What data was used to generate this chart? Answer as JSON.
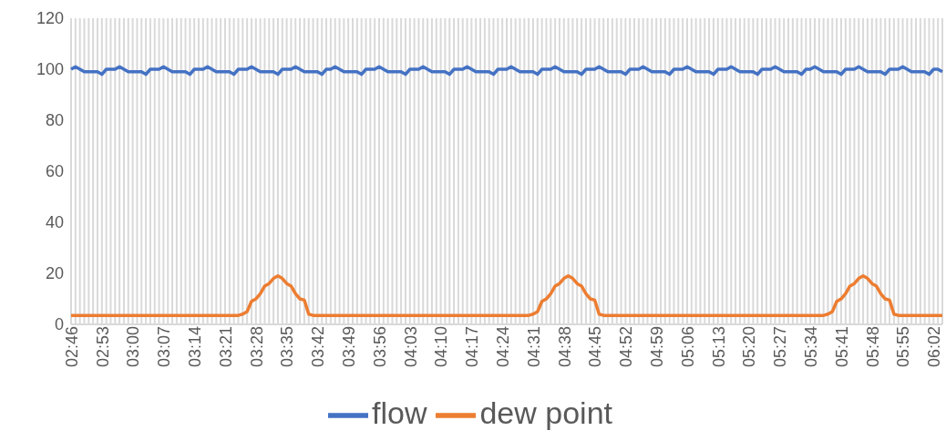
{
  "chart_data": {
    "type": "line",
    "categories": [
      "02:46",
      null,
      null,
      null,
      null,
      null,
      null,
      "02:53",
      null,
      null,
      null,
      null,
      null,
      null,
      "03:00",
      null,
      null,
      null,
      null,
      null,
      null,
      "03:07",
      null,
      null,
      null,
      null,
      null,
      null,
      "03:14",
      null,
      null,
      null,
      null,
      null,
      null,
      "03:21",
      null,
      null,
      null,
      null,
      null,
      null,
      "03:28",
      null,
      null,
      null,
      null,
      null,
      null,
      "03:35",
      null,
      null,
      null,
      null,
      null,
      null,
      "03:42",
      null,
      null,
      null,
      null,
      null,
      null,
      "03:49",
      null,
      null,
      null,
      null,
      null,
      null,
      "03:56",
      null,
      null,
      null,
      null,
      null,
      null,
      "04:03",
      null,
      null,
      null,
      null,
      null,
      null,
      "04:10",
      null,
      null,
      null,
      null,
      null,
      null,
      "04:17",
      null,
      null,
      null,
      null,
      null,
      null,
      "04:24",
      null,
      null,
      null,
      null,
      null,
      null,
      "04:31",
      null,
      null,
      null,
      null,
      null,
      null,
      "04:38",
      null,
      null,
      null,
      null,
      null,
      null,
      "04:45",
      null,
      null,
      null,
      null,
      null,
      null,
      "04:52",
      null,
      null,
      null,
      null,
      null,
      null,
      "04:59",
      null,
      null,
      null,
      null,
      null,
      null,
      "05:06",
      null,
      null,
      null,
      null,
      null,
      null,
      "05:13",
      null,
      null,
      null,
      null,
      null,
      null,
      "05:20",
      null,
      null,
      null,
      null,
      null,
      null,
      "05:27",
      null,
      null,
      null,
      null,
      null,
      null,
      "05:34",
      null,
      null,
      null,
      null,
      null,
      null,
      "05:41",
      null,
      null,
      null,
      null,
      null,
      null,
      "05:48",
      null,
      null,
      null,
      null,
      null,
      null,
      "05:55",
      null,
      null,
      null,
      null,
      null,
      null,
      "06:02",
      null,
      null
    ],
    "series": [
      {
        "name": "flow",
        "color": "#4472c4",
        "values": [
          100,
          101,
          100,
          99,
          99,
          99,
          99,
          98,
          100,
          100,
          100,
          101,
          100,
          99,
          99,
          99,
          99,
          98,
          100,
          100,
          100,
          101,
          100,
          99,
          99,
          99,
          99,
          98,
          100,
          100,
          100,
          101,
          100,
          99,
          99,
          99,
          99,
          98,
          100,
          100,
          100,
          101,
          100,
          99,
          99,
          99,
          99,
          98,
          100,
          100,
          100,
          101,
          100,
          99,
          99,
          99,
          99,
          98,
          100,
          100,
          101,
          100,
          99,
          99,
          99,
          99,
          98,
          100,
          100,
          100,
          101,
          100,
          99,
          99,
          99,
          99,
          98,
          100,
          100,
          100,
          101,
          100,
          99,
          99,
          99,
          99,
          98,
          100,
          100,
          100,
          101,
          100,
          99,
          99,
          99,
          99,
          98,
          100,
          100,
          100,
          101,
          100,
          99,
          99,
          99,
          99,
          98,
          100,
          100,
          100,
          101,
          100,
          99,
          99,
          99,
          99,
          98,
          100,
          100,
          100,
          101,
          100,
          99,
          99,
          99,
          99,
          98,
          100,
          100,
          100,
          101,
          100,
          99,
          99,
          99,
          99,
          98,
          100,
          100,
          100,
          101,
          100,
          99,
          99,
          99,
          99,
          98,
          100,
          100,
          100,
          101,
          100,
          99,
          99,
          99,
          99,
          98,
          100,
          100,
          100,
          101,
          100,
          99,
          99,
          99,
          99,
          98,
          100,
          100,
          101,
          100,
          99,
          99,
          99,
          99,
          98,
          100,
          100,
          100,
          101,
          100,
          99,
          99,
          99,
          99,
          98,
          100,
          100,
          100,
          101,
          100,
          99,
          99,
          99,
          99,
          98,
          100,
          100,
          99
        ]
      },
      {
        "name": "dew point",
        "color": "#ed7d31",
        "values": [
          3.5,
          3.5,
          3.5,
          3.5,
          3.5,
          3.5,
          3.5,
          3.5,
          3.5,
          3.5,
          3.5,
          3.5,
          3.5,
          3.5,
          3.5,
          3.5,
          3.5,
          3.5,
          3.5,
          3.5,
          3.5,
          3.5,
          3.5,
          3.5,
          3.5,
          3.5,
          3.5,
          3.5,
          3.5,
          3.5,
          3.5,
          3.5,
          3.5,
          3.5,
          3.5,
          3.5,
          3.5,
          3.5,
          3.5,
          4,
          5,
          9,
          10,
          12,
          15,
          16,
          18,
          19,
          18,
          16,
          15,
          12,
          10,
          9.5,
          4,
          3.5,
          3.5,
          3.5,
          3.5,
          3.5,
          3.5,
          3.5,
          3.5,
          3.5,
          3.5,
          3.5,
          3.5,
          3.5,
          3.5,
          3.5,
          3.5,
          3.5,
          3.5,
          3.5,
          3.5,
          3.5,
          3.5,
          3.5,
          3.5,
          3.5,
          3.5,
          3.5,
          3.5,
          3.5,
          3.5,
          3.5,
          3.5,
          3.5,
          3.5,
          3.5,
          3.5,
          3.5,
          3.5,
          3.5,
          3.5,
          3.5,
          3.5,
          3.5,
          3.5,
          3.5,
          3.5,
          3.5,
          3.5,
          3.5,
          3.5,
          4,
          5,
          9,
          10,
          12,
          15,
          16,
          18,
          19,
          18,
          16,
          15,
          12,
          10,
          9.5,
          4,
          3.5,
          3.5,
          3.5,
          3.5,
          3.5,
          3.5,
          3.5,
          3.5,
          3.5,
          3.5,
          3.5,
          3.5,
          3.5,
          3.5,
          3.5,
          3.5,
          3.5,
          3.5,
          3.5,
          3.5,
          3.5,
          3.5,
          3.5,
          3.5,
          3.5,
          3.5,
          3.5,
          3.5,
          3.5,
          3.5,
          3.5,
          3.5,
          3.5,
          3.5,
          3.5,
          3.5,
          3.5,
          3.5,
          3.5,
          3.5,
          3.5,
          3.5,
          3.5,
          3.5,
          3.5,
          3.5,
          3.5,
          3.5,
          3.5,
          3.5,
          3.5,
          4,
          5,
          9,
          10,
          12,
          15,
          16,
          18,
          19,
          18,
          16,
          15,
          12,
          10,
          9.5,
          4,
          3.5,
          3.5,
          3.5,
          3.5,
          3.5,
          3.5,
          3.5,
          3.5,
          3.5,
          3.5,
          3.5
        ]
      }
    ],
    "ylim": [
      0,
      120
    ],
    "yticks": [
      0,
      20,
      40,
      60,
      80,
      100,
      120
    ],
    "grid": "x",
    "legend": "bottom",
    "marker": "none"
  }
}
